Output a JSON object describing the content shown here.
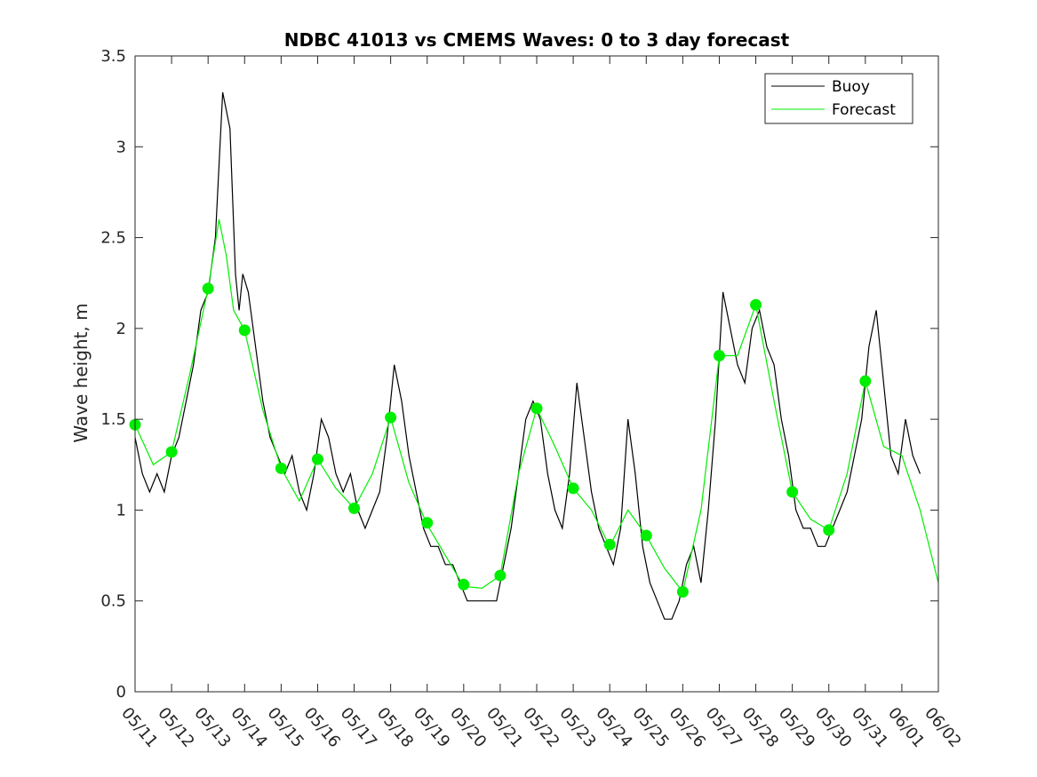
{
  "chart_data": {
    "type": "line",
    "title": "NDBC 41013 vs CMEMS Waves: 0 to 3 day forecast",
    "xlabel": "",
    "ylabel": "Wave height, m",
    "ylim": [
      0,
      3.5
    ],
    "yticks": [
      "0",
      "0.5",
      "1",
      "1.5",
      "2",
      "2.5",
      "3",
      "3.5"
    ],
    "xlim_days": [
      0,
      22
    ],
    "xticks": [
      "05/11",
      "05/12",
      "05/13",
      "05/14",
      "05/15",
      "05/16",
      "05/17",
      "05/18",
      "05/19",
      "05/20",
      "05/21",
      "05/22",
      "05/23",
      "05/24",
      "05/25",
      "05/26",
      "05/27",
      "05/28",
      "05/29",
      "05/30",
      "05/31",
      "06/01",
      "06/02"
    ],
    "grid": false,
    "legend_position": "top-right",
    "legend": [
      {
        "label": "Buoy",
        "color": "#000000"
      },
      {
        "label": "Forecast",
        "color": "#00ee00"
      }
    ],
    "series": [
      {
        "name": "Buoy",
        "color": "#000000",
        "x": [
          0,
          0.2,
          0.4,
          0.6,
          0.8,
          1.0,
          1.2,
          1.4,
          1.6,
          1.8,
          2.0,
          2.2,
          2.4,
          2.6,
          2.75,
          2.85,
          2.95,
          3.1,
          3.3,
          3.5,
          3.7,
          3.9,
          4.1,
          4.3,
          4.5,
          4.7,
          4.9,
          5.1,
          5.3,
          5.5,
          5.7,
          5.9,
          6.1,
          6.3,
          6.5,
          6.7,
          6.9,
          7.1,
          7.3,
          7.5,
          7.7,
          7.9,
          8.1,
          8.3,
          8.5,
          8.7,
          8.9,
          9.1,
          9.3,
          9.5,
          9.7,
          9.9,
          10.1,
          10.3,
          10.5,
          10.7,
          10.9,
          11.1,
          11.3,
          11.5,
          11.7,
          11.9,
          12.1,
          12.3,
          12.5,
          12.7,
          12.9,
          13.1,
          13.3,
          13.5,
          13.7,
          13.9,
          14.1,
          14.3,
          14.5,
          14.7,
          14.9,
          15.1,
          15.3,
          15.5,
          15.7,
          15.9,
          16.1,
          16.3,
          16.5,
          16.7,
          16.9,
          17.1,
          17.3,
          17.5,
          17.7,
          17.9,
          18.1,
          18.3,
          18.5,
          18.7,
          18.9,
          19.1,
          19.3,
          19.5,
          19.7,
          19.9,
          20.1,
          20.3,
          20.5,
          20.7,
          20.9,
          21.1,
          21.3,
          21.5
        ],
        "y": [
          1.4,
          1.2,
          1.1,
          1.2,
          1.1,
          1.3,
          1.4,
          1.6,
          1.8,
          2.1,
          2.2,
          2.5,
          3.3,
          3.1,
          2.3,
          2.1,
          2.3,
          2.2,
          1.9,
          1.6,
          1.4,
          1.3,
          1.2,
          1.3,
          1.1,
          1.0,
          1.2,
          1.5,
          1.4,
          1.2,
          1.1,
          1.2,
          1.0,
          0.9,
          1.0,
          1.1,
          1.4,
          1.8,
          1.6,
          1.3,
          1.1,
          0.9,
          0.8,
          0.8,
          0.7,
          0.7,
          0.6,
          0.5,
          0.5,
          0.5,
          0.5,
          0.5,
          0.7,
          0.9,
          1.2,
          1.5,
          1.6,
          1.5,
          1.2,
          1.0,
          0.9,
          1.2,
          1.7,
          1.4,
          1.1,
          0.9,
          0.8,
          0.7,
          0.9,
          1.5,
          1.2,
          0.8,
          0.6,
          0.5,
          0.4,
          0.4,
          0.5,
          0.7,
          0.8,
          0.6,
          1.0,
          1.5,
          2.2,
          2.0,
          1.8,
          1.7,
          2.0,
          2.1,
          1.9,
          1.8,
          1.5,
          1.3,
          1.0,
          0.9,
          0.9,
          0.8,
          0.8,
          0.9,
          1.0,
          1.1,
          1.3,
          1.5,
          1.9,
          2.1,
          1.7,
          1.3,
          1.2,
          1.5,
          1.3,
          1.2
        ]
      },
      {
        "name": "Forecast",
        "color": "#00ee00",
        "x": [
          0,
          0.5,
          1.0,
          1.5,
          2.0,
          2.3,
          2.5,
          2.7,
          3.0,
          3.5,
          4.0,
          4.5,
          5.0,
          5.5,
          6.0,
          6.5,
          7.0,
          7.5,
          8.0,
          8.5,
          9.0,
          9.5,
          10.0,
          10.5,
          11.0,
          11.5,
          12.0,
          12.5,
          13.0,
          13.5,
          14.0,
          14.5,
          15.0,
          15.5,
          16.0,
          16.5,
          17.0,
          17.5,
          18.0,
          18.5,
          19.0,
          19.5,
          20.0,
          20.5,
          21.0,
          21.5,
          22.0
        ],
        "y": [
          1.47,
          1.25,
          1.32,
          1.75,
          2.22,
          2.6,
          2.4,
          2.1,
          1.99,
          1.55,
          1.23,
          1.05,
          1.28,
          1.12,
          1.01,
          1.2,
          1.51,
          1.15,
          0.92,
          0.75,
          0.58,
          0.57,
          0.64,
          1.2,
          1.56,
          1.35,
          1.12,
          1.0,
          0.8,
          1.0,
          0.86,
          0.68,
          0.55,
          1.0,
          1.85,
          1.85,
          2.13,
          1.6,
          1.1,
          0.95,
          0.89,
          1.2,
          1.71,
          1.35,
          1.3,
          1.0,
          0.6
        ]
      }
    ],
    "forecast_markers": {
      "name": "Forecast start points",
      "x": [
        0,
        1,
        2,
        3,
        4,
        5,
        6,
        7,
        8,
        9,
        10,
        11,
        12,
        13,
        14,
        15,
        16,
        17,
        18,
        19,
        20
      ],
      "y": [
        1.47,
        1.32,
        2.22,
        1.99,
        1.23,
        1.28,
        1.01,
        1.51,
        0.93,
        0.59,
        0.64,
        1.56,
        1.12,
        0.81,
        0.86,
        0.55,
        1.85,
        2.13,
        1.1,
        0.89,
        1.71
      ]
    }
  }
}
